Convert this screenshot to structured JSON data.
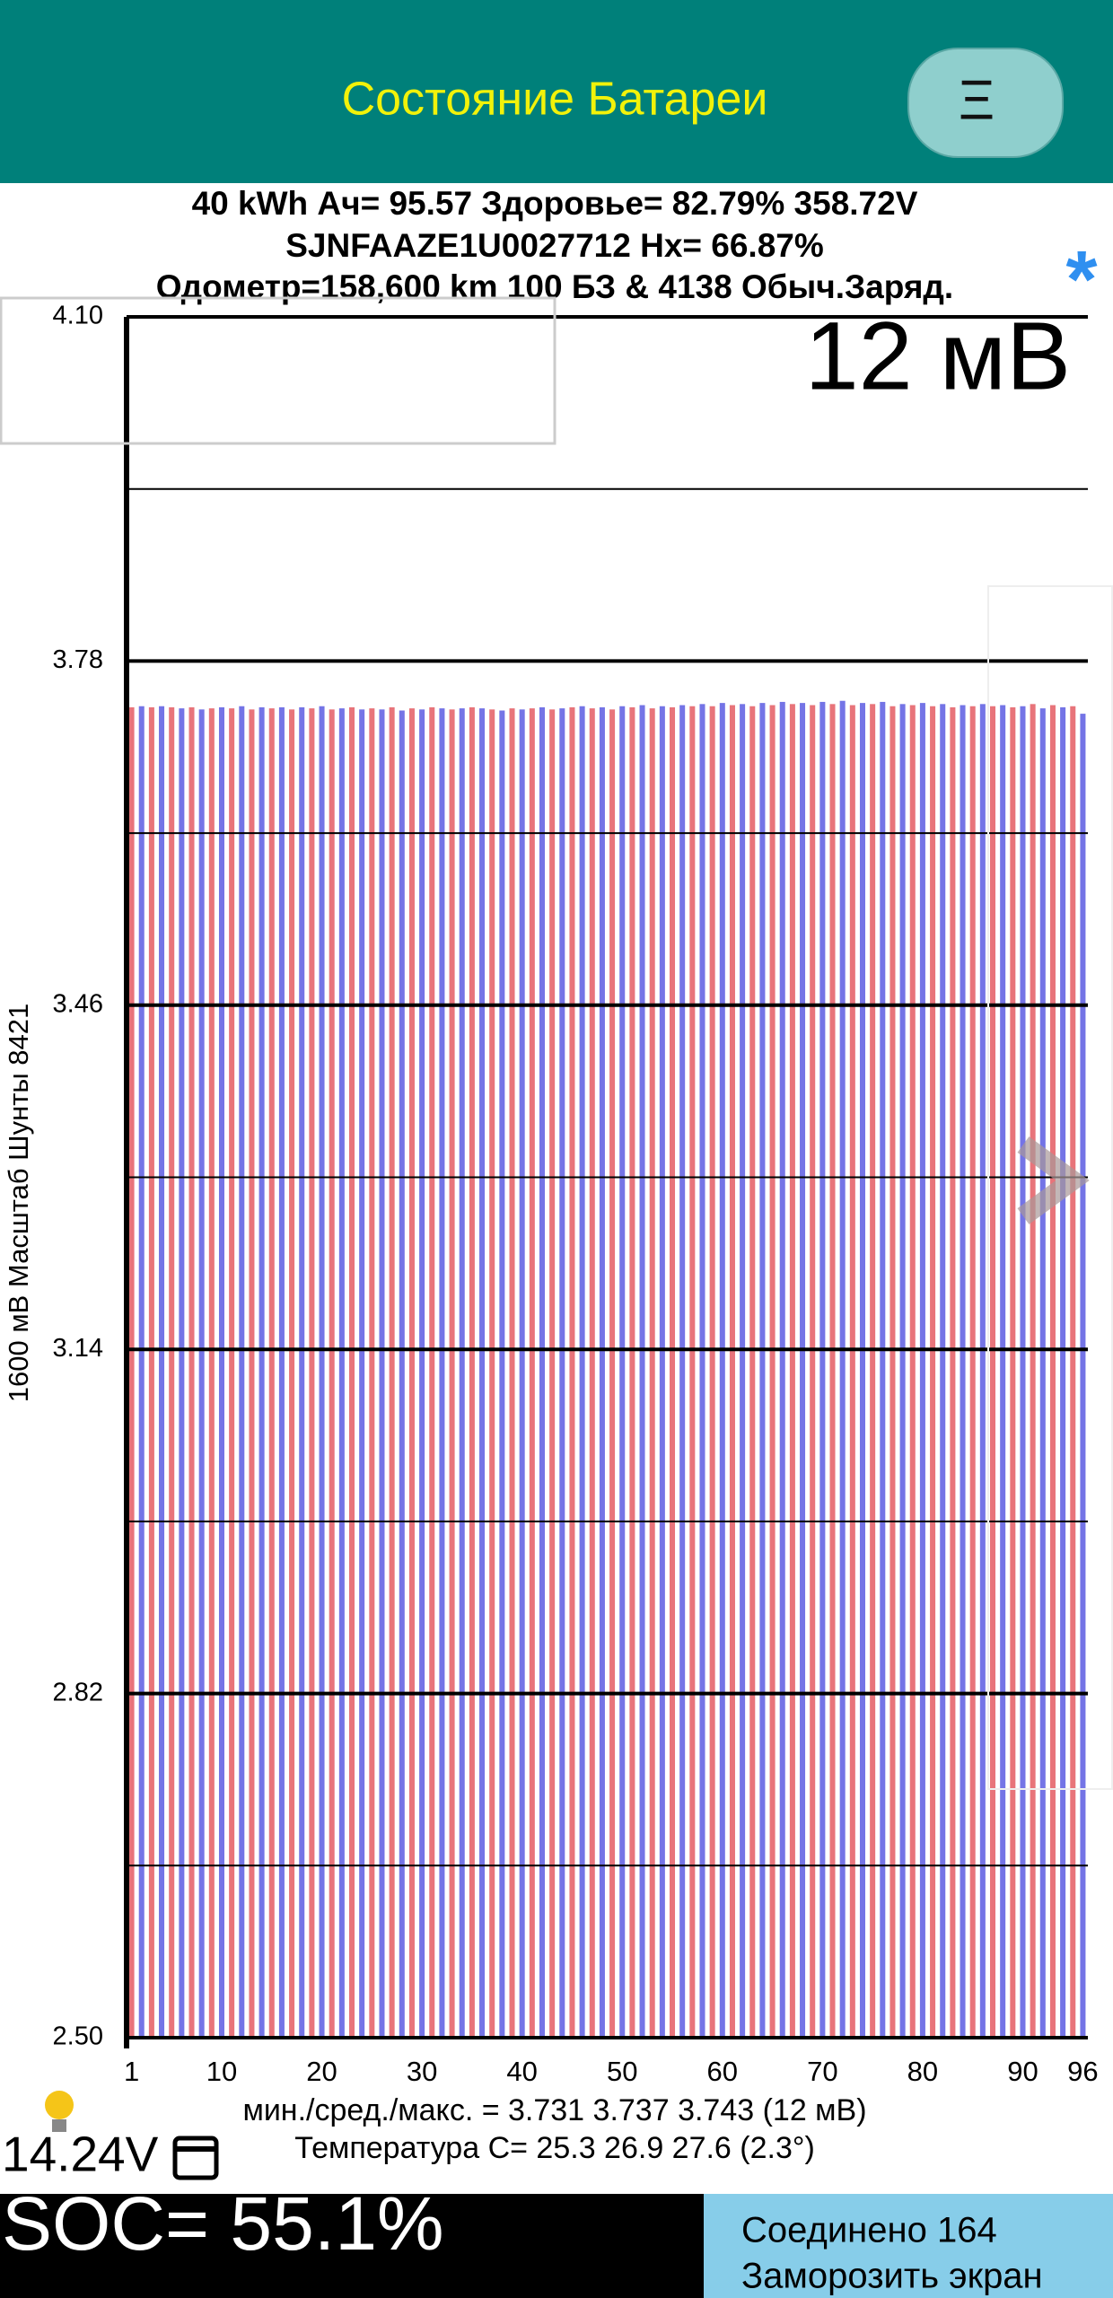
{
  "header": {
    "title": "Состояние Батареи",
    "menu_button": "Ξ"
  },
  "chart_data": {
    "type": "bar",
    "info_lines": [
      "40 kWh  Ач= 95.57  Здоровье= 82.79%   358.72V",
      "SJNFAAZE1U0027712   Hx= 66.87%",
      "Одометр=158,600 km 100 БЗ & 4138 Обыч.Заряд."
    ],
    "marker": "*",
    "spread_label": "12 мВ",
    "y_label": "1600 мВ Масштаб   Шунты 8421",
    "categories": [
      "1",
      null,
      null,
      null,
      null,
      null,
      null,
      null,
      null,
      "10",
      null,
      null,
      null,
      null,
      null,
      null,
      null,
      null,
      null,
      "20",
      null,
      null,
      null,
      null,
      null,
      null,
      null,
      null,
      null,
      "30",
      null,
      null,
      null,
      null,
      null,
      null,
      null,
      null,
      null,
      "40",
      null,
      null,
      null,
      null,
      null,
      null,
      null,
      null,
      null,
      "50",
      null,
      null,
      null,
      null,
      null,
      null,
      null,
      null,
      null,
      "60",
      null,
      null,
      null,
      null,
      null,
      null,
      null,
      null,
      null,
      "70",
      null,
      null,
      null,
      null,
      null,
      null,
      null,
      null,
      null,
      "80",
      null,
      null,
      null,
      null,
      null,
      null,
      null,
      null,
      null,
      "90",
      null,
      null,
      null,
      null,
      null,
      "96"
    ],
    "values": [
      3.737,
      3.738,
      3.737,
      3.738,
      3.737,
      3.736,
      3.737,
      3.735,
      3.736,
      3.737,
      3.736,
      3.738,
      3.735,
      3.737,
      3.736,
      3.737,
      3.735,
      3.737,
      3.736,
      3.738,
      3.735,
      3.736,
      3.737,
      3.735,
      3.736,
      3.735,
      3.737,
      3.734,
      3.736,
      3.735,
      3.737,
      3.736,
      3.735,
      3.736,
      3.737,
      3.736,
      3.735,
      3.734,
      3.736,
      3.735,
      3.736,
      3.737,
      3.735,
      3.736,
      3.737,
      3.738,
      3.736,
      3.737,
      3.735,
      3.738,
      3.737,
      3.739,
      3.736,
      3.738,
      3.737,
      3.739,
      3.738,
      3.74,
      3.738,
      3.741,
      3.739,
      3.74,
      3.738,
      3.741,
      3.739,
      3.742,
      3.74,
      3.741,
      3.739,
      3.742,
      3.74,
      3.743,
      3.739,
      3.741,
      3.74,
      3.742,
      3.738,
      3.74,
      3.739,
      3.741,
      3.738,
      3.74,
      3.737,
      3.739,
      3.738,
      3.74,
      3.738,
      3.739,
      3.737,
      3.738,
      3.74,
      3.736,
      3.739,
      3.737,
      3.738,
      3.731
    ],
    "bar_colors": [
      "#e8747a",
      "#7474e6"
    ],
    "ylim": [
      2.5,
      4.1
    ],
    "yticks": [
      {
        "value": 2.5,
        "label": "2.50"
      },
      2.82,
      3.14,
      3.46,
      3.78,
      {
        "value": 4.1,
        "label": "4.10"
      }
    ],
    "minor_grid": [
      2.66,
      2.98,
      3.3,
      3.62,
      3.94
    ],
    "grid": true,
    "stats": "мин./сред./макс. = 3.731 3.737 3.743  (12 мВ)",
    "temperature": "Температура С= 25.3  26.9  27.6  (2.3°)"
  },
  "footer": {
    "aux_voltage": "14.24V",
    "soc": "SOC= 55.1%",
    "connected": "Соединено 164",
    "freeze": "Заморозить экран"
  }
}
